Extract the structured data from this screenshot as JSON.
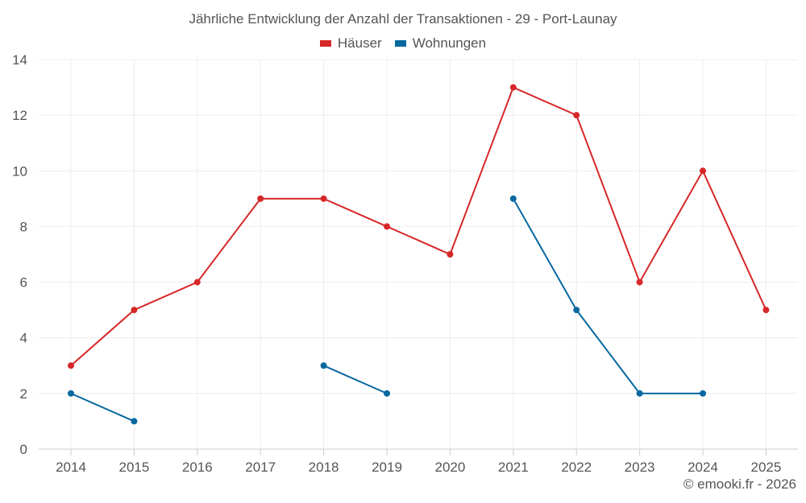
{
  "chart_data": {
    "type": "line",
    "title": "Jährliche Entwicklung der Anzahl der Transaktionen - 29 - Port-Launay",
    "categories": [
      "2014",
      "2015",
      "2016",
      "2017",
      "2018",
      "2019",
      "2020",
      "2021",
      "2022",
      "2023",
      "2024",
      "2025"
    ],
    "series": [
      {
        "name": "Häuser",
        "color": "#d62728",
        "values": [
          3,
          5,
          6,
          9,
          9,
          8,
          7,
          13,
          12,
          6,
          10,
          5
        ]
      },
      {
        "name": "Wohnungen",
        "color": "#0868a0",
        "values": [
          2,
          1,
          null,
          null,
          3,
          2,
          null,
          9,
          5,
          2,
          2,
          null
        ]
      }
    ],
    "ylim": [
      0,
      14
    ],
    "yticks": [
      "0",
      "2",
      "4",
      "6",
      "8",
      "10",
      "12",
      "14"
    ],
    "xlabel": "",
    "ylabel": "",
    "grid": true,
    "legend": "top-center"
  },
  "credit": "© emooki.fr - 2026"
}
